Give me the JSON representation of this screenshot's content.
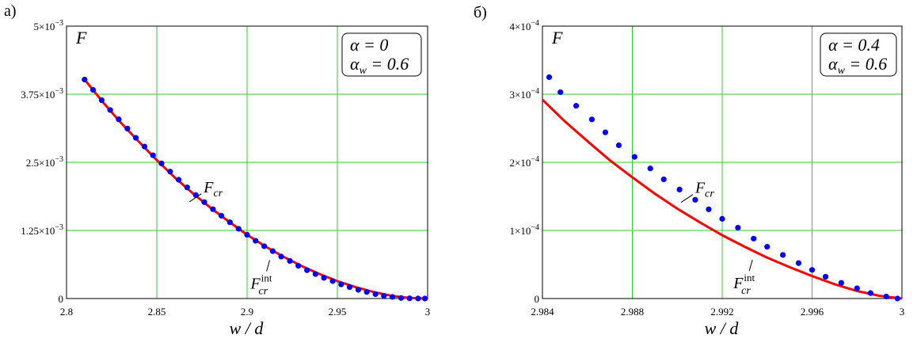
{
  "chart_data": [
    {
      "type": "line",
      "panel_label": "а)",
      "ylabel": "F",
      "xlabel": "w / d",
      "xlim": [
        2.8,
        3.0
      ],
      "ylim": [
        0,
        0.005
      ],
      "x_ticks": [
        {
          "value": 2.8,
          "label": "2.8"
        },
        {
          "value": 2.85,
          "label": "2.85"
        },
        {
          "value": 2.9,
          "label": "2.9"
        },
        {
          "value": 2.95,
          "label": "2.95"
        },
        {
          "value": 3.0,
          "label": "3"
        }
      ],
      "y_ticks": [
        {
          "value": 0,
          "label": "0",
          "exp": ""
        },
        {
          "value": 0.00125,
          "label": "1.25×10",
          "exp": "−3"
        },
        {
          "value": 0.0025,
          "label": "2.5×10",
          "exp": "−3"
        },
        {
          "value": 0.00375,
          "label": "3.75×10",
          "exp": "−3"
        },
        {
          "value": 0.005,
          "label": "5×10",
          "exp": "−3"
        }
      ],
      "grid": true,
      "legend_box": [
        "α = 0",
        "α_w = 0.6"
      ],
      "legend_placement": "top-right",
      "series": [
        {
          "name": "F_cr",
          "style": "line",
          "color": "#ff0000",
          "x": [
            2.81,
            2.82,
            2.83,
            2.84,
            2.85,
            2.86,
            2.87,
            2.88,
            2.89,
            2.9,
            2.91,
            2.92,
            2.93,
            2.94,
            2.95,
            2.96,
            2.97,
            2.98,
            2.99,
            3.0
          ],
          "y": [
            0.00402,
            0.00361,
            0.00323,
            0.00288,
            0.00254,
            0.00222,
            0.00193,
            0.00166,
            0.00141,
            0.00117,
            0.00096,
            0.00077,
            0.0006,
            0.00045,
            0.00032,
            0.00021,
            0.00012,
            5e-05,
            1e-05,
            0.0
          ]
        },
        {
          "name": "F_cr^int",
          "style": "markers",
          "color": "#0000ff",
          "x": [
            2.81,
            2.8147,
            2.8195,
            2.8242,
            2.8289,
            2.8337,
            2.8384,
            2.8432,
            2.8479,
            2.8526,
            2.8574,
            2.8621,
            2.8668,
            2.8716,
            2.8763,
            2.8811,
            2.8858,
            2.8905,
            2.8953,
            2.9,
            2.9047,
            2.9095,
            2.9142,
            2.9189,
            2.9237,
            2.9284,
            2.9332,
            2.9379,
            2.9426,
            2.9474,
            2.9521,
            2.9568,
            2.9616,
            2.9663,
            2.9711,
            2.9758,
            2.9805,
            2.9853,
            2.99,
            2.9947,
            2.9985
          ],
          "y": [
            0.00402,
            0.00383,
            0.00364,
            0.00346,
            0.00329,
            0.00312,
            0.00295,
            0.00279,
            0.00263,
            0.00248,
            0.00233,
            0.00218,
            0.00204,
            0.0019,
            0.00177,
            0.00164,
            0.00152,
            0.0014,
            0.00128,
            0.00117,
            0.00106,
            0.00096,
            0.00087,
            0.00077,
            0.00069,
            0.0006,
            0.00052,
            0.00045,
            0.00038,
            0.00032,
            0.00026,
            0.00021,
            0.00016,
            0.00012,
            8e-05,
            5e-05,
            3e-05,
            1e-05,
            4e-06,
            1e-06,
            0.0
          ]
        }
      ],
      "annotations": [
        {
          "text": "F",
          "sub": "cr",
          "sup": "",
          "x": 2.876,
          "y": 0.00195
        },
        {
          "text": "F",
          "sub": "cr",
          "sup": "int",
          "x": 2.902,
          "y": 0.00018
        }
      ]
    },
    {
      "type": "line",
      "panel_label": "б)",
      "ylabel": "F",
      "xlabel": "w / d",
      "xlim": [
        2.984,
        3.0
      ],
      "ylim": [
        0,
        0.0004
      ],
      "x_ticks": [
        {
          "value": 2.984,
          "label": "2.984"
        },
        {
          "value": 2.988,
          "label": "2.988"
        },
        {
          "value": 2.992,
          "label": "2.992"
        },
        {
          "value": 2.996,
          "label": "2.996"
        },
        {
          "value": 3.0,
          "label": "3"
        }
      ],
      "y_ticks": [
        {
          "value": 0,
          "label": "0",
          "exp": ""
        },
        {
          "value": 0.0001,
          "label": "1×10",
          "exp": "−4"
        },
        {
          "value": 0.0002,
          "label": "2×10",
          "exp": "−4"
        },
        {
          "value": 0.0003,
          "label": "3×10",
          "exp": "−4"
        },
        {
          "value": 0.0004,
          "label": "4×10",
          "exp": "−4"
        }
      ],
      "grid": true,
      "legend_box": [
        "α = 0.4",
        "α_w = 0.6"
      ],
      "legend_placement": "top-right",
      "series": [
        {
          "name": "F_cr",
          "style": "line",
          "color": "#ff0000",
          "x": [
            2.984,
            2.985,
            2.986,
            2.987,
            2.988,
            2.989,
            2.99,
            2.991,
            2.992,
            2.993,
            2.994,
            2.995,
            2.996,
            2.997,
            2.998,
            2.999,
            3.0
          ],
          "y": [
            0.000292,
            0.00026,
            0.000231,
            0.000203,
            0.000178,
            0.000154,
            0.000132,
            0.000112,
            9.3e-05,
            7.6e-05,
            6e-05,
            4.6e-05,
            3.3e-05,
            2.1e-05,
            1.1e-05,
            4e-06,
            0.0
          ]
        },
        {
          "name": "F_cr^int",
          "style": "markers",
          "color": "#0000ff",
          "x": [
            2.9843,
            2.9848,
            2.9855,
            2.9862,
            2.9868,
            2.9874,
            2.9881,
            2.9888,
            2.9894,
            2.9901,
            2.9908,
            2.9914,
            2.992,
            2.9927,
            2.9934,
            2.994,
            2.9947,
            2.9954,
            2.996,
            2.9966,
            2.9973,
            2.998,
            2.9986,
            2.9993,
            2.9998
          ],
          "y": [
            0.000325,
            0.000303,
            0.000283,
            0.000263,
            0.000244,
            0.000225,
            0.000208,
            0.000191,
            0.000175,
            0.00016,
            0.000145,
            0.000131,
            0.000117,
            0.000104,
            8.8e-05,
            7.6e-05,
            6.4e-05,
            5.2e-05,
            4.2e-05,
            3.2e-05,
            2.3e-05,
            1.5e-05,
            8e-06,
            3e-06,
            0.0
          ]
        }
      ],
      "annotations": [
        {
          "text": "F",
          "sub": "cr",
          "sup": "",
          "x": 2.9908,
          "y": 0.000155
        },
        {
          "text": "F",
          "sub": "cr",
          "sup": "int",
          "x": 2.9925,
          "y": 1.5e-05
        }
      ]
    }
  ]
}
